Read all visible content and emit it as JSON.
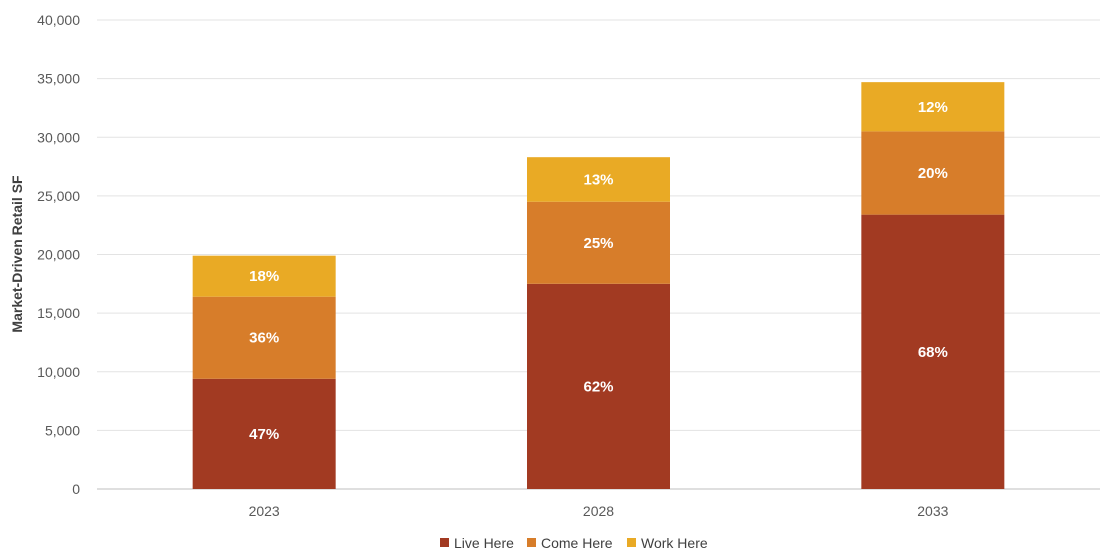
{
  "chart_data": {
    "type": "bar",
    "stacked": true,
    "categories": [
      "2023",
      "2028",
      "2033"
    ],
    "ylabel": "Market-Driven Retail SF",
    "xlabel": "",
    "ylim": [
      0,
      40000
    ],
    "yticks": [
      0,
      5000,
      10000,
      15000,
      20000,
      25000,
      30000,
      35000,
      40000
    ],
    "ytick_labels": [
      "0",
      "5,000",
      "10,000",
      "15,000",
      "20,000",
      "25,000",
      "30,000",
      "35,000",
      "40,000"
    ],
    "grid": true,
    "legend_position": "bottom",
    "series": [
      {
        "name": "Live Here",
        "color": "#a23a22",
        "values": [
          9400,
          17500,
          23400
        ],
        "labels": [
          "47%",
          "62%",
          "68%"
        ]
      },
      {
        "name": "Come Here",
        "color": "#d77d2a",
        "values": [
          7000,
          7000,
          7100
        ],
        "labels": [
          "36%",
          "25%",
          "20%"
        ]
      },
      {
        "name": "Work Here",
        "color": "#e9aa25",
        "values": [
          3500,
          3800,
          4200
        ],
        "labels": [
          "18%",
          "13%",
          "12%"
        ]
      }
    ]
  }
}
